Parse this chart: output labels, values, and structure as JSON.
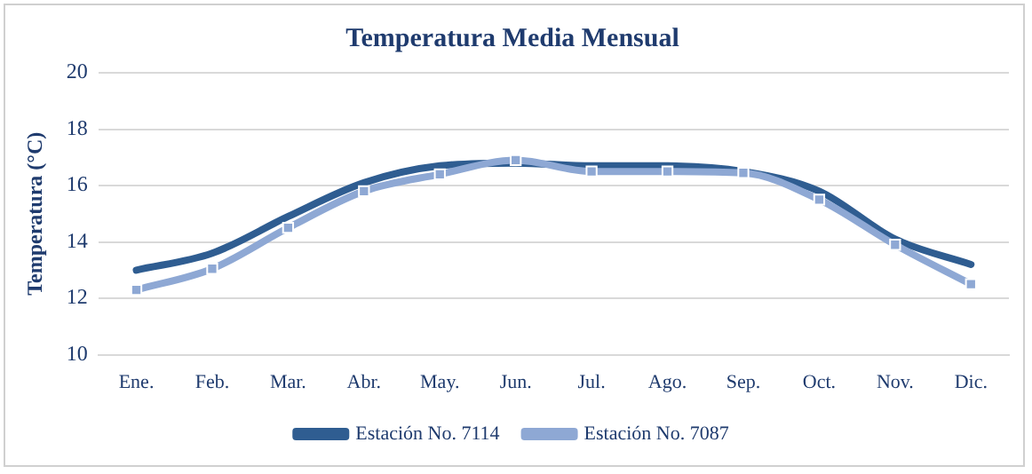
{
  "chart_data": {
    "type": "line",
    "title": "Temperatura Media Mensual",
    "ylabel": "Temperatura (°C)",
    "categories": [
      "Ene.",
      "Feb.",
      "Mar.",
      "Abr.",
      "May.",
      "Jun.",
      "Jul.",
      "Ago.",
      "Sep.",
      "Oct.",
      "Nov.",
      "Dic."
    ],
    "series": [
      {
        "name": "Estación No. 7114",
        "color": "#2f5d91",
        "marker": "none",
        "values": [
          13.0,
          13.6,
          14.9,
          16.1,
          16.7,
          16.8,
          16.7,
          16.7,
          16.5,
          15.8,
          14.1,
          13.2
        ]
      },
      {
        "name": "Estación No. 7087",
        "color": "#8ea8d4",
        "marker": "square",
        "values": [
          12.3,
          13.05,
          14.5,
          15.8,
          16.4,
          16.9,
          16.5,
          16.5,
          16.45,
          15.5,
          13.9,
          12.5
        ]
      }
    ],
    "ylim": [
      10,
      20
    ],
    "yticks": [
      10,
      12,
      14,
      16,
      18,
      20
    ],
    "grid": "y",
    "legend": "bottom"
  }
}
